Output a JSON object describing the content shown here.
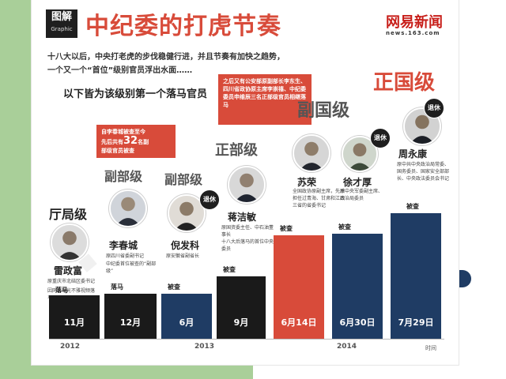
{
  "header": {
    "logo_cn": "图解",
    "logo_en": "Graphic",
    "title": "中纪委的打虎节奏",
    "brand": "网易新闻",
    "brand_url": "news.163.com"
  },
  "intro": {
    "line1": "十八大以后，中央打老虎的步伐稳健行进，并且节奏有加快之趋势，",
    "line2": "一个又一个“首位”级别官员浮出水面……"
  },
  "subtitle": "以下皆为该级别第一个落马官员",
  "colors": {
    "accent_red": "#d84b3a",
    "navy": "#1f3c64",
    "black": "#1a1a1a",
    "green_band": "#a9cf99"
  },
  "callouts": {
    "count_line1": "自李春城被查至今",
    "count_pre": "先后共有",
    "count_num": "32",
    "count_post": "名副",
    "count_line3": "部级官员被查",
    "ministerial_note": "之后又有公安部原副部长李东生、四川省政协原主席李崇禧、中纪委委员申维辰三名正部级官员相继落马"
  },
  "levels": {
    "ting": "厅局级",
    "fu_bu_1": "副部级",
    "fu_bu_2": "副部级",
    "zheng_bu": "正部级",
    "fu_guo": "副国级",
    "zheng_guo": "正国级"
  },
  "retired_label": "退休",
  "officials": [
    {
      "name": "雷政富",
      "title": "原重庆市北碚区委书记",
      "note": "因网上曝光不雅视频落马",
      "status": "落马",
      "date": "11月"
    },
    {
      "name": "李春城",
      "title": "原四川省委副书记",
      "note": "中纪委首位被查的“副部级”",
      "status": "落马",
      "date": "12月"
    },
    {
      "name": "倪发科",
      "title": "原安徽省副省长",
      "note": "",
      "status": "被查",
      "date": "6月"
    },
    {
      "name": "蒋洁敏",
      "title": "原国资委主任、中石油董事长",
      "note": "十八大后落马的首位中央委员",
      "status": "被查",
      "date": "9月"
    },
    {
      "name": "苏荣",
      "title": "全国政协原副主席，先后担任过青海、甘肃和江西三省的省委书记",
      "note": "",
      "status": "被查",
      "date": "6月14日"
    },
    {
      "name": "徐才厚",
      "title": "原中央军委副主席、政治局委员",
      "note": "",
      "status": "被查",
      "date": "6月30日"
    },
    {
      "name": "周永康",
      "title": "原中共中央政治局常委、国务委员、国家安全部部长、中央政法委员会书记",
      "note": "",
      "status": "被查",
      "date": "7月29日"
    }
  ],
  "axis": {
    "years": [
      "2012",
      "2013",
      "2014"
    ],
    "time_label": "时间"
  }
}
